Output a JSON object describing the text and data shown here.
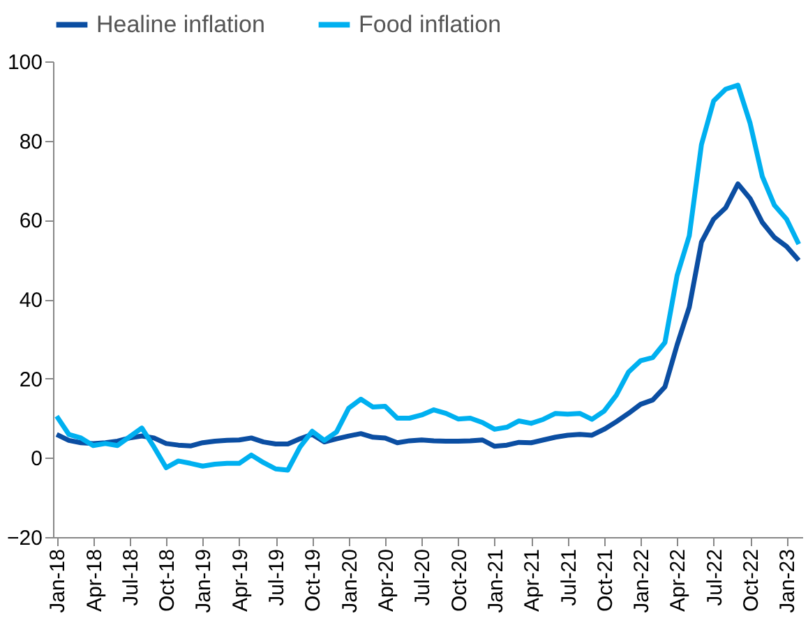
{
  "chart_data": {
    "type": "line",
    "categories": [
      "Jan-18",
      null,
      null,
      "Apr-18",
      null,
      null,
      "Jul-18",
      null,
      null,
      "Oct-18",
      null,
      null,
      "Jan-19",
      null,
      null,
      "Apr-19",
      null,
      null,
      "Jul-19",
      null,
      null,
      "Oct-19",
      null,
      null,
      "Jan-20",
      null,
      null,
      "Apr-20",
      null,
      null,
      "Jul-20",
      null,
      null,
      "Oct-20",
      null,
      null,
      "Jan-21",
      null,
      null,
      "Apr-21",
      null,
      null,
      "Jul-21",
      null,
      null,
      "Oct-21",
      null,
      null,
      "Jan-22",
      null,
      null,
      "Apr-22",
      null,
      null,
      "Jul-22",
      null,
      null,
      "Oct-22",
      null,
      null,
      "Jan-23",
      null
    ],
    "series": [
      {
        "name": "Healine inflation",
        "color": "#0b4ea2",
        "values": [
          5.9,
          4.4,
          3.8,
          3.6,
          3.8,
          4.2,
          5.0,
          5.5,
          5.0,
          3.6,
          3.2,
          3.0,
          3.8,
          4.2,
          4.4,
          4.5,
          5.0,
          4.0,
          3.5,
          3.5,
          4.8,
          5.9,
          4.0,
          4.8,
          5.5,
          6.1,
          5.2,
          5.0,
          3.8,
          4.3,
          4.5,
          4.3,
          4.2,
          4.2,
          4.3,
          4.5,
          2.9,
          3.2,
          3.9,
          3.8,
          4.5,
          5.2,
          5.7,
          5.9,
          5.7,
          7.2,
          9.1,
          11.2,
          13.5,
          14.6,
          17.9,
          28.5,
          38,
          54.4,
          60.2,
          63.1,
          69.1,
          65.4,
          59.4,
          55.6,
          53.3,
          49.8
        ]
      },
      {
        "name": "Food inflation",
        "color": "#00b0f0",
        "values": [
          10.5,
          5.9,
          5.0,
          3.1,
          3.6,
          3.1,
          5.3,
          7.5,
          2.7,
          -2.5,
          -0.8,
          -1.4,
          -2.1,
          -1.6,
          -1.4,
          -1.4,
          0.7,
          -1.2,
          -2.8,
          -3.1,
          2.7,
          6.7,
          4.4,
          6.5,
          12.5,
          14.8,
          12.8,
          13.0,
          10.0,
          10.0,
          10.8,
          12.1,
          11.2,
          9.8,
          10.0,
          8.9,
          7.2,
          7.7,
          9.3,
          8.7,
          9.7,
          11.2,
          11.0,
          11.2,
          9.7,
          11.8,
          15.8,
          21.6,
          24.5,
          25.3,
          29.1,
          46,
          56,
          79,
          90,
          93,
          94,
          84.4,
          71,
          63.7,
          60.2,
          53.9
        ]
      }
    ],
    "ylim": [
      -20,
      100
    ],
    "yticks": [
      -20,
      0,
      20,
      40,
      60,
      80,
      100
    ],
    "grid": false,
    "legend": "top",
    "marker": "none",
    "line_style": "solid"
  }
}
